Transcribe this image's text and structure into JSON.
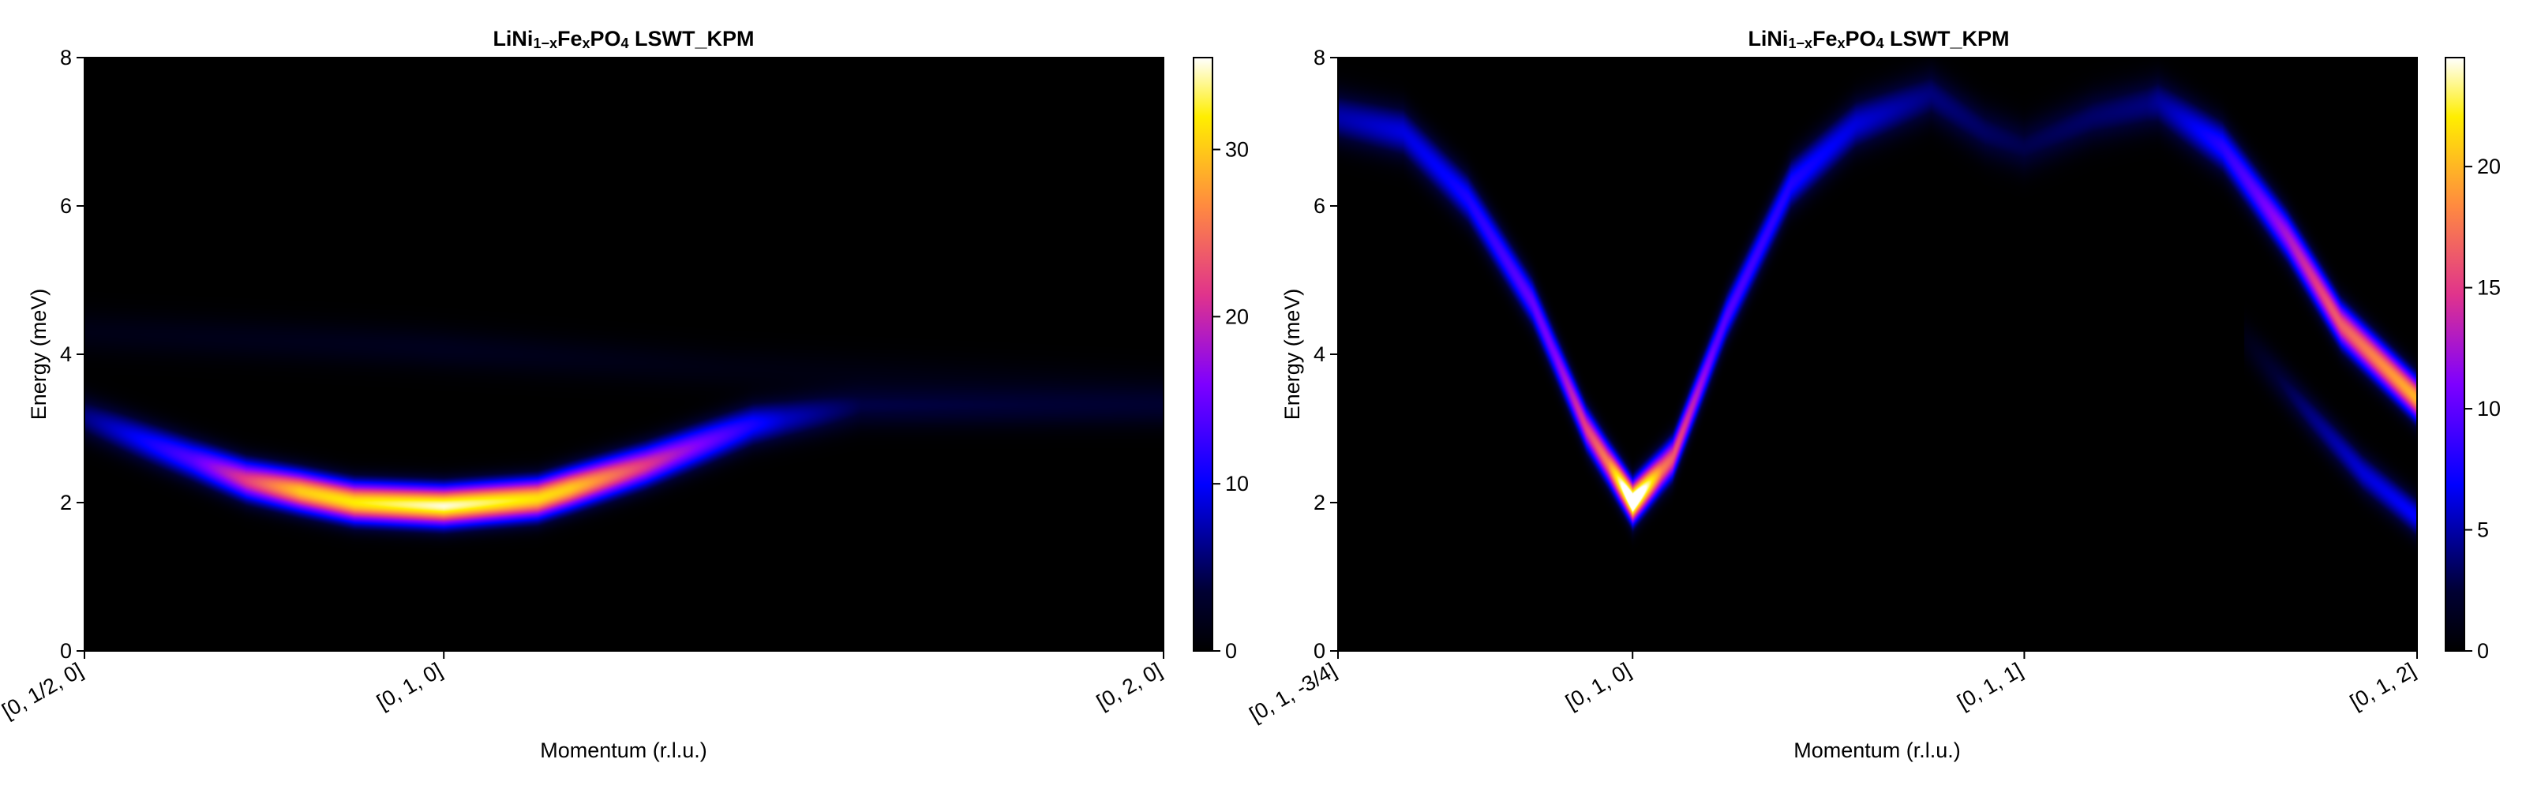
{
  "chart_data": [
    {
      "type": "heatmap",
      "title": "LiNi₁₋ₓFeₓPO₄ LSWT_KPM",
      "title_parts": {
        "a": "LiNi",
        "a_sub": "1−x",
        "b": "Fe",
        "b_sub": "x",
        "c": "PO",
        "c_sub": "4",
        "d": " LSWT_KPM"
      },
      "xlabel": "Momentum (r.l.u.)",
      "ylabel": "Energy (meV)",
      "x_range": [
        0,
        1
      ],
      "x_ticks": [
        {
          "pos": 0.0,
          "label": "[0, 1/2, 0]"
        },
        {
          "pos": 0.333,
          "label": "[0, 1, 0]"
        },
        {
          "pos": 1.0,
          "label": "[0, 2, 0]"
        }
      ],
      "ylim": [
        0,
        8
      ],
      "y_ticks": [
        0,
        2,
        4,
        6,
        8
      ],
      "colormap": "gnuplot2",
      "colorbar": {
        "range": [
          0,
          35.5
        ],
        "ticks": [
          0,
          10,
          20,
          30
        ]
      },
      "intensity_bands": [
        {
          "description": "main spin-wave branch",
          "points": [
            [
              0.0,
              3.15
            ],
            [
              0.06,
              2.8
            ],
            [
              0.15,
              2.3
            ],
            [
              0.25,
              2.0
            ],
            [
              0.333,
              1.95
            ],
            [
              0.42,
              2.05
            ],
            [
              0.52,
              2.5
            ],
            [
              0.62,
              3.05
            ],
            [
              0.72,
              3.3
            ],
            [
              1.0,
              3.3
            ]
          ],
          "peak_intensity": [
            [
              0.0,
              6
            ],
            [
              0.1,
              14
            ],
            [
              0.2,
              30
            ],
            [
              0.333,
              35
            ],
            [
              0.45,
              30
            ],
            [
              0.55,
              18
            ],
            [
              0.65,
              8
            ],
            [
              0.72,
              4
            ],
            [
              1.0,
              3
            ]
          ]
        },
        {
          "description": "diffuse upper band",
          "points": [
            [
              0.0,
              4.3
            ],
            [
              0.3,
              4.1
            ],
            [
              0.6,
              3.8
            ],
            [
              1.0,
              3.6
            ]
          ],
          "peak_intensity": [
            [
              0.0,
              1.5
            ],
            [
              0.333,
              2
            ],
            [
              0.6,
              1.2
            ],
            [
              1.0,
              0.6
            ]
          ]
        }
      ]
    },
    {
      "type": "heatmap",
      "title": "LiNi₁₋ₓFeₓPO₄ LSWT_KPM",
      "title_parts": {
        "a": "LiNi",
        "a_sub": "1−x",
        "b": "Fe",
        "b_sub": "x",
        "c": "PO",
        "c_sub": "4",
        "d": " LSWT_KPM"
      },
      "xlabel": "Momentum (r.l.u.)",
      "ylabel": "Energy (meV)",
      "x_range": [
        0,
        1
      ],
      "x_ticks": [
        {
          "pos": 0.0,
          "label": "[0, 1, -3/4]"
        },
        {
          "pos": 0.273,
          "label": "[0, 1, 0]"
        },
        {
          "pos": 0.636,
          "label": "[0, 1, 1]"
        },
        {
          "pos": 1.0,
          "label": "[0, 1, 2]"
        }
      ],
      "ylim": [
        0,
        8
      ],
      "y_ticks": [
        0,
        2,
        4,
        6,
        8
      ],
      "colormap": "gnuplot2",
      "colorbar": {
        "range": [
          0,
          24.5
        ],
        "ticks": [
          0,
          5,
          10,
          15,
          20
        ]
      },
      "intensity_bands": [
        {
          "description": "dispersive branch",
          "points": [
            [
              0.0,
              7.2
            ],
            [
              0.06,
              7.0
            ],
            [
              0.12,
              6.1
            ],
            [
              0.18,
              4.7
            ],
            [
              0.23,
              3.0
            ],
            [
              0.273,
              2.0
            ],
            [
              0.31,
              2.6
            ],
            [
              0.36,
              4.5
            ],
            [
              0.42,
              6.3
            ],
            [
              0.48,
              7.1
            ],
            [
              0.55,
              7.5
            ],
            [
              0.6,
              7.0
            ],
            [
              0.636,
              6.8
            ],
            [
              0.7,
              7.2
            ],
            [
              0.76,
              7.4
            ],
            [
              0.82,
              6.8
            ],
            [
              0.88,
              5.6
            ],
            [
              0.93,
              4.4
            ],
            [
              1.0,
              3.4
            ]
          ],
          "peak_intensity": [
            [
              0.0,
              5
            ],
            [
              0.1,
              7
            ],
            [
              0.2,
              11
            ],
            [
              0.25,
              18
            ],
            [
              0.273,
              30
            ],
            [
              0.3,
              18
            ],
            [
              0.35,
              10
            ],
            [
              0.45,
              7
            ],
            [
              0.55,
              4
            ],
            [
              0.636,
              3
            ],
            [
              0.75,
              4
            ],
            [
              0.85,
              10
            ],
            [
              0.92,
              16
            ],
            [
              1.0,
              20
            ]
          ]
        },
        {
          "description": "lower branch near right edge",
          "points": [
            [
              0.84,
              4.2
            ],
            [
              0.9,
              3.2
            ],
            [
              0.95,
              2.4
            ],
            [
              1.0,
              1.8
            ]
          ],
          "peak_intensity": [
            [
              0.84,
              1
            ],
            [
              0.9,
              4
            ],
            [
              0.95,
              6
            ],
            [
              1.0,
              7
            ]
          ]
        }
      ]
    }
  ]
}
